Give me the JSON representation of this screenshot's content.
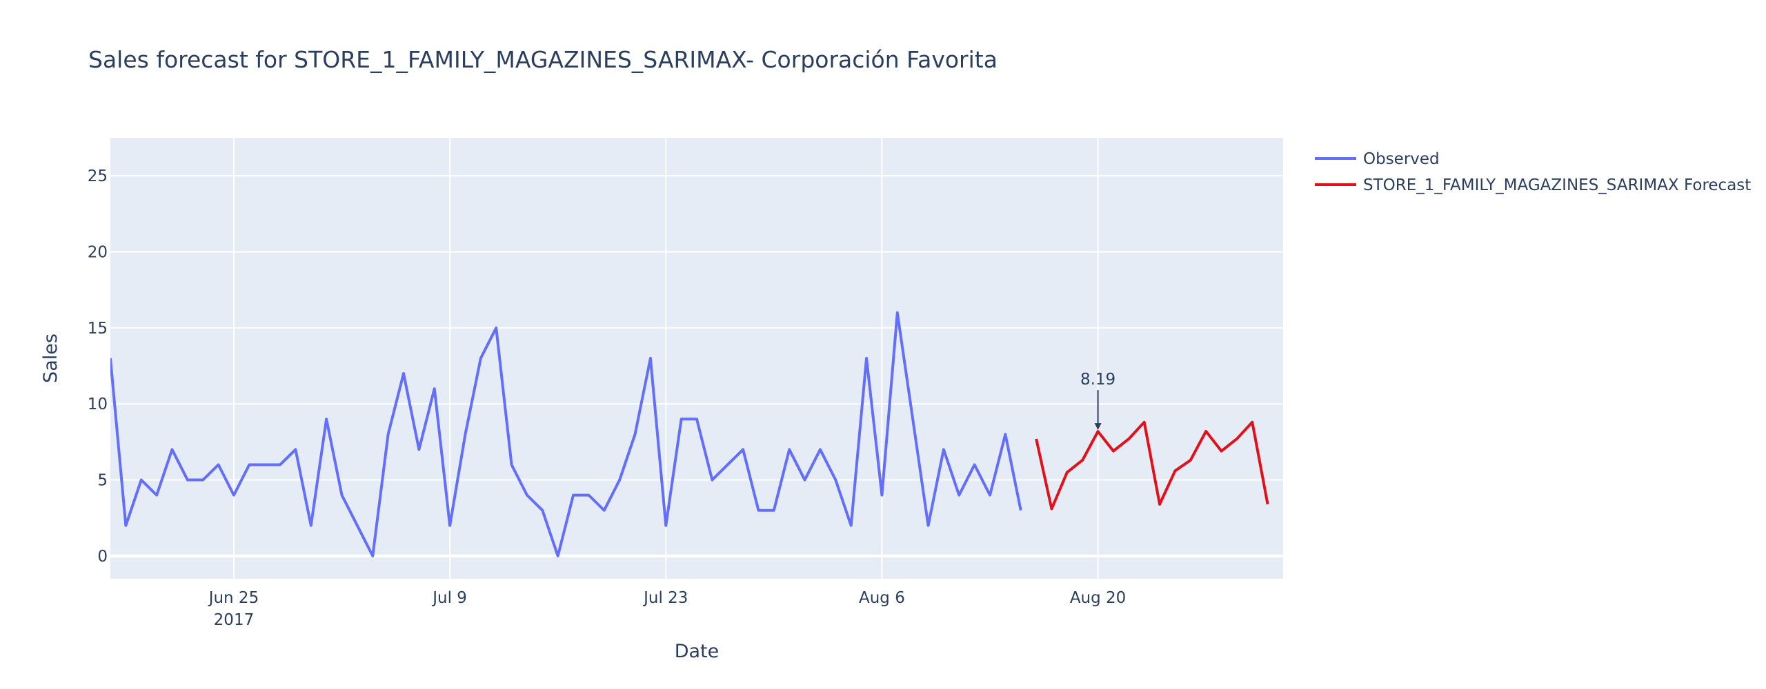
{
  "chart_data": {
    "type": "line",
    "title": "Sales forecast for STORE_1_FAMILY_MAGAZINES_SARIMAX- Corporación Favorita",
    "xlabel": "Date",
    "ylabel": "Sales",
    "x_range": [
      "2017-06-17",
      "2017-09-01"
    ],
    "ylim": [
      -1.5,
      27.5
    ],
    "y_ticks": [
      0,
      5,
      10,
      15,
      20,
      25
    ],
    "x_ticks": [
      {
        "date": "2017-06-25",
        "label": "Jun 25",
        "sublabel": "2017"
      },
      {
        "date": "2017-07-09",
        "label": "Jul 9",
        "sublabel": ""
      },
      {
        "date": "2017-07-23",
        "label": "Jul 23",
        "sublabel": ""
      },
      {
        "date": "2017-08-06",
        "label": "Aug 6",
        "sublabel": ""
      },
      {
        "date": "2017-08-20",
        "label": "Aug 20",
        "sublabel": ""
      }
    ],
    "grid": true,
    "legend_position": "top-right",
    "series": [
      {
        "name": "Observed",
        "color": "#636efa",
        "start_date": "2017-06-17",
        "values": [
          13,
          2,
          5,
          4,
          7,
          5,
          5,
          6,
          4,
          6,
          6,
          6,
          7,
          2,
          9,
          4,
          2,
          0,
          8,
          12,
          7,
          11,
          2,
          8,
          13,
          15,
          6,
          4,
          3,
          0,
          4,
          4,
          3,
          5,
          8,
          13,
          2,
          9,
          9,
          5,
          6,
          7,
          3,
          3,
          7,
          5,
          7,
          5,
          2,
          13,
          4,
          16,
          9,
          2,
          7,
          4,
          6,
          4,
          8,
          3
        ]
      },
      {
        "name": "STORE_1_FAMILY_MAGAZINES_SARIMAX Forecast",
        "color": "#e3101a",
        "start_date": "2017-08-16",
        "values": [
          7.7,
          3.1,
          5.5,
          6.3,
          8.19,
          6.9,
          7.7,
          8.8,
          3.4,
          5.6,
          6.3,
          8.2,
          6.9,
          7.7,
          8.8,
          3.4
        ]
      }
    ],
    "annotations": [
      {
        "date": "2017-08-20",
        "value": 8.19,
        "text": "8.19"
      }
    ]
  }
}
